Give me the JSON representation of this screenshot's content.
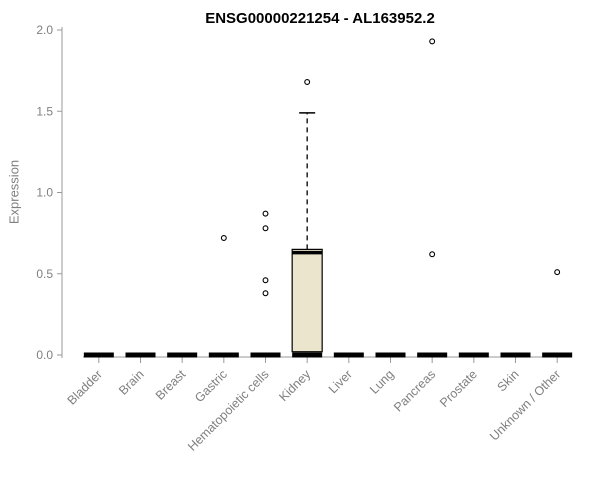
{
  "chart_data": {
    "type": "boxplot",
    "title": "ENSG00000221254 - AL163952.2",
    "ylabel": "Expression",
    "xlabel": "",
    "ylim": [
      0.0,
      2.0
    ],
    "grid": false,
    "legend": false,
    "yticks": [
      {
        "v": 0.0,
        "label": "0.0"
      },
      {
        "v": 0.5,
        "label": "0.5"
      },
      {
        "v": 1.0,
        "label": "1.0"
      },
      {
        "v": 1.5,
        "label": "1.5"
      },
      {
        "v": 2.0,
        "label": "2.0"
      }
    ],
    "categories": [
      "Bladder",
      "Brain",
      "Breast",
      "Gastric",
      "Hematopoietic cells",
      "Kidney",
      "Liver",
      "Lung",
      "Pancreas",
      "Prostate",
      "Skin",
      "Unknown / Other"
    ],
    "boxes": [
      {
        "category": "Bladder",
        "min": 0,
        "q1": 0,
        "median": 0,
        "q3": 0,
        "max": 0,
        "outliers": []
      },
      {
        "category": "Brain",
        "min": 0,
        "q1": 0,
        "median": 0,
        "q3": 0,
        "max": 0,
        "outliers": []
      },
      {
        "category": "Breast",
        "min": 0,
        "q1": 0,
        "median": 0,
        "q3": 0,
        "max": 0,
        "outliers": []
      },
      {
        "category": "Gastric",
        "min": 0,
        "q1": 0,
        "median": 0,
        "q3": 0,
        "max": 0,
        "outliers": [
          0.72
        ]
      },
      {
        "category": "Hematopoietic cells",
        "min": 0,
        "q1": 0,
        "median": 0,
        "q3": 0,
        "max": 0,
        "outliers": [
          0.87,
          0.78,
          0.46,
          0.38
        ]
      },
      {
        "category": "Kidney",
        "min": 0,
        "q1": 0.02,
        "median": 0.63,
        "q3": 0.65,
        "max": 1.49,
        "outliers": [
          1.68
        ]
      },
      {
        "category": "Liver",
        "min": 0,
        "q1": 0,
        "median": 0,
        "q3": 0,
        "max": 0,
        "outliers": []
      },
      {
        "category": "Lung",
        "min": 0,
        "q1": 0,
        "median": 0,
        "q3": 0,
        "max": 0,
        "outliers": []
      },
      {
        "category": "Pancreas",
        "min": 0,
        "q1": 0,
        "median": 0,
        "q3": 0,
        "max": 0,
        "outliers": [
          1.93,
          0.62
        ]
      },
      {
        "category": "Prostate",
        "min": 0,
        "q1": 0,
        "median": 0,
        "q3": 0,
        "max": 0,
        "outliers": []
      },
      {
        "category": "Skin",
        "min": 0,
        "q1": 0,
        "median": 0,
        "q3": 0,
        "max": 0,
        "outliers": []
      },
      {
        "category": "Unknown / Other",
        "min": 0,
        "q1": 0,
        "median": 0,
        "q3": 0,
        "max": 0,
        "outliers": [
          0.51
        ]
      }
    ],
    "colors": {
      "box_fill": "#ece5cd",
      "box_stroke": "#000000",
      "axis": "#9a9a9a",
      "tick_text": "#7f7f7f",
      "title_text": "#000000"
    }
  }
}
